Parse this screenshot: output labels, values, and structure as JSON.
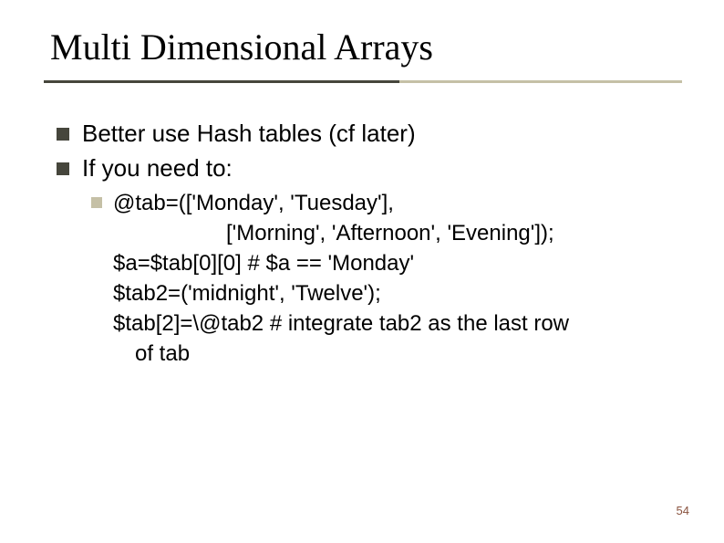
{
  "title": "Multi Dimensional Arrays",
  "bullets": {
    "b1": "Better use Hash tables (cf later)",
    "b2": "If you need to:",
    "sub1": "@tab=(['Monday', 'Tuesday'],",
    "sub1b": "['Morning', 'Afternoon', 'Evening']);",
    "sub2": "$a=$tab[0][0] # $a == 'Monday'",
    "sub3": "$tab2=('midnight',  'Twelve');",
    "sub4": "$tab[2]=\\@tab2 # integrate tab2 as the last row",
    "sub4b": "of tab"
  },
  "page_number": "54",
  "style": {
    "title_fontsize": 40,
    "body_fontsize": 26,
    "sub_fontsize": 24,
    "bullet_color": "#46463c",
    "sub_bullet_color": "#c5c0a6",
    "line_dark": "#46463c",
    "line_light": "#c5c0a6",
    "pagenum_color": "#8a533f",
    "background": "#ffffff",
    "font_family_title": "Times New Roman",
    "font_family_body": "Arial"
  }
}
